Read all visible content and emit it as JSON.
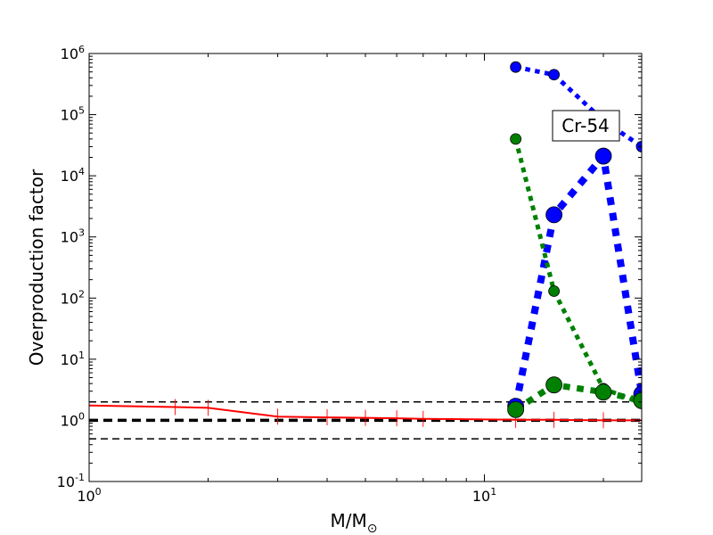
{
  "chart_data": {
    "type": "line",
    "xlabel": "M/M",
    "xlabel_subscript": "⊙",
    "ylabel": "Overproduction factor",
    "x_scale": "log",
    "y_scale": "log",
    "xlim": [
      1,
      25
    ],
    "ylim": [
      0.1,
      1000000
    ],
    "x_ticks": [
      {
        "value": 1,
        "base": "10",
        "exp": "0"
      },
      {
        "value": 10,
        "base": "10",
        "exp": "1"
      }
    ],
    "y_ticks": [
      {
        "value": 0.1,
        "base": "10",
        "exp": "-1"
      },
      {
        "value": 1,
        "base": "10",
        "exp": "0"
      },
      {
        "value": 10,
        "base": "10",
        "exp": "1"
      },
      {
        "value": 100,
        "base": "10",
        "exp": "2"
      },
      {
        "value": 1000,
        "base": "10",
        "exp": "3"
      },
      {
        "value": 10000,
        "base": "10",
        "exp": "4"
      },
      {
        "value": 100000,
        "base": "10",
        "exp": "5"
      },
      {
        "value": 1000000,
        "base": "10",
        "exp": "6"
      }
    ],
    "annotation": "Cr-54",
    "reference_lines": [
      {
        "y": 2.0,
        "color": "#000000",
        "style": "dashed",
        "width": 1.5
      },
      {
        "y": 1.0,
        "color": "#000000",
        "style": "dashed",
        "width": 3.5
      },
      {
        "y": 0.5,
        "color": "#000000",
        "style": "dashed",
        "width": 1.5
      }
    ],
    "series": [
      {
        "color": "#ff0000",
        "style": "solid",
        "width": 2,
        "marker": "vline",
        "x": [
          1,
          1.65,
          2,
          3,
          4,
          5,
          6,
          7,
          12,
          15,
          20,
          25
        ],
        "y": [
          1.75,
          1.65,
          1.6,
          1.15,
          1.12,
          1.1,
          1.08,
          1.06,
          1.02,
          1.02,
          1.0,
          1.0
        ]
      },
      {
        "color": "#0000ff",
        "style": "dotted",
        "width": 5,
        "marker": "circle",
        "marker_size": 6,
        "x": [
          12,
          15,
          20,
          25
        ],
        "y": [
          600000,
          450000,
          80000,
          30000
        ]
      },
      {
        "color": "#0000ff",
        "style": "dotted",
        "width": 8,
        "marker": "circle",
        "marker_size": 9,
        "x": [
          12,
          15,
          20,
          25
        ],
        "y": [
          1.7,
          2300,
          21000,
          2.7
        ]
      },
      {
        "color": "#008000",
        "style": "dotted",
        "width": 5,
        "marker": "circle",
        "marker_size": 6,
        "x": [
          12,
          15,
          20,
          25
        ],
        "y": [
          40000,
          130,
          3.3,
          1.9
        ]
      },
      {
        "color": "#008000",
        "style": "dotted",
        "width": 7,
        "marker": "circle",
        "marker_size": 9,
        "x": [
          12,
          15,
          20,
          25
        ],
        "y": [
          1.5,
          3.8,
          2.9,
          2.1
        ]
      }
    ]
  }
}
